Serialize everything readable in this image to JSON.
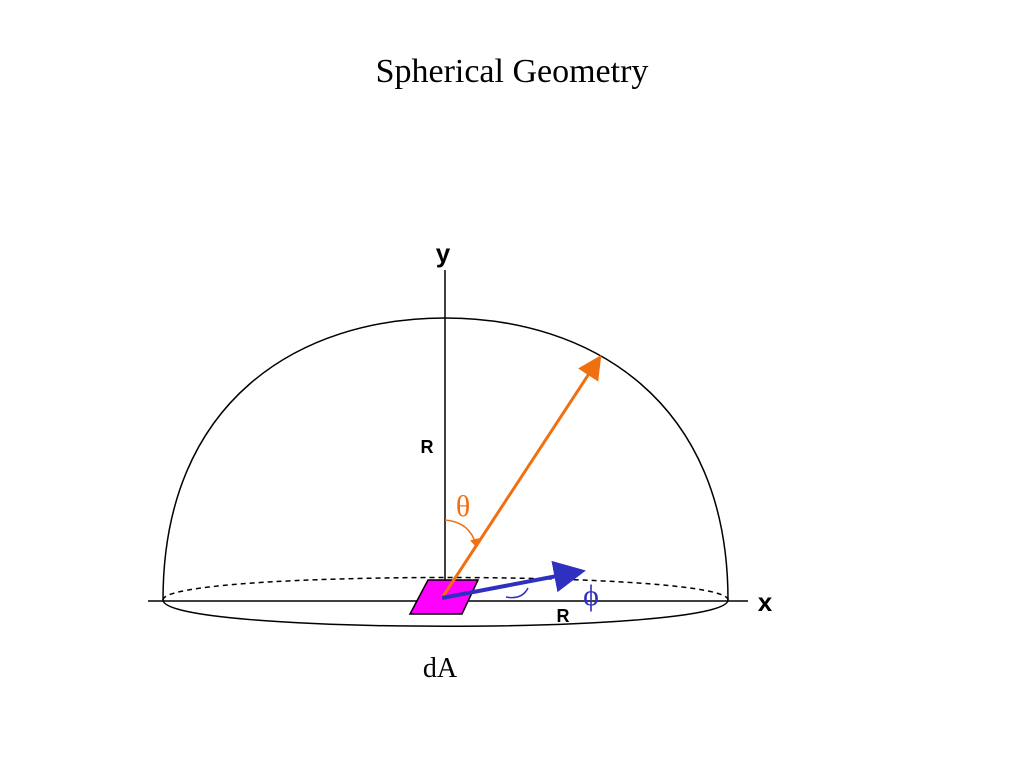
{
  "title": "Spherical Geometry",
  "labels": {
    "y_axis": "y",
    "x_axis": "x",
    "radius_vertical": "R",
    "radius_horizontal": "R",
    "theta": "θ",
    "phi": "ϕ",
    "area": "dA"
  }
}
